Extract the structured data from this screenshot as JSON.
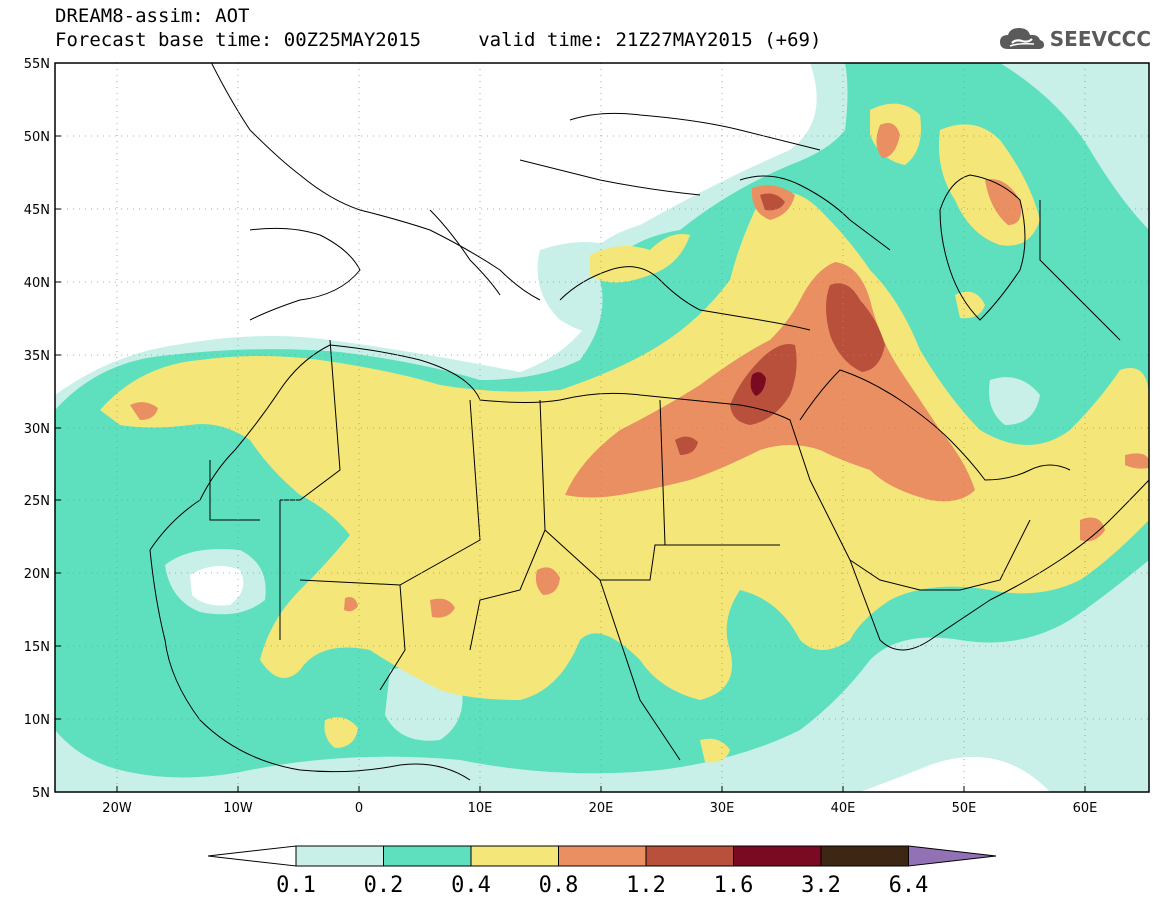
{
  "header": {
    "title_line1": "DREAM8-assim: AOT",
    "title_line2": "Forecast base time: 00Z25MAY2015     valid time: 21Z27MAY2015 (+69)",
    "logo_text": "SEEVCCC",
    "logo_icon": "cloud-icon"
  },
  "map": {
    "lon_range": [
      -25,
      65
    ],
    "lat_range": [
      5,
      55
    ],
    "lat_ticks": [
      "55N",
      "50N",
      "45N",
      "40N",
      "35N",
      "30N",
      "25N",
      "20N",
      "15N",
      "10N",
      "5N"
    ],
    "lon_ticks": [
      "20W",
      "10W",
      "0",
      "10E",
      "20E",
      "30E",
      "40E",
      "50E",
      "60E"
    ],
    "grid": "dotted"
  },
  "colorbar": {
    "labels": [
      "0.1",
      "0.2",
      "0.4",
      "0.8",
      "1.2",
      "1.6",
      "3.2",
      "6.4"
    ],
    "colors": [
      "#ffffff",
      "#c8f0e8",
      "#5ee0be",
      "#f5e67a",
      "#ea8f62",
      "#b9503c",
      "#7a0a22",
      "#3e2614",
      "#9272b4"
    ]
  },
  "palette": {
    "c01": "#c8f0e8",
    "c02": "#5ee0be",
    "c04": "#f5e67a",
    "c08": "#ea8f62",
    "c12": "#b9503c",
    "c16": "#7a0a22"
  }
}
